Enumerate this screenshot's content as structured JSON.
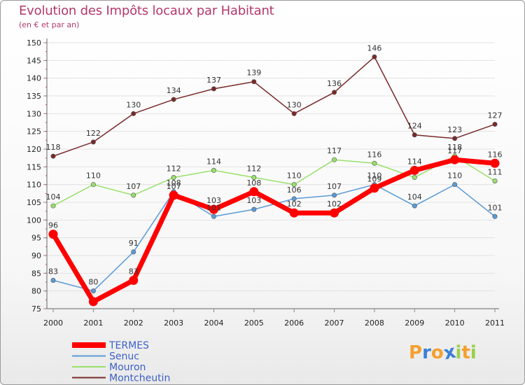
{
  "chart_data": {
    "type": "line",
    "title": "Evolution des Impôts locaux par Habitant",
    "subtitle": "(en € et par an)",
    "x": [
      "2000",
      "2001",
      "2002",
      "2003",
      "2004",
      "2005",
      "2006",
      "2007",
      "2008",
      "2009",
      "2010",
      "2011"
    ],
    "ylim": [
      75,
      150
    ],
    "yticks": [
      75,
      80,
      85,
      90,
      95,
      100,
      105,
      110,
      115,
      120,
      125,
      130,
      135,
      140,
      145,
      150
    ],
    "series": [
      {
        "name": "TERMES",
        "color": "#ff0000",
        "values": [
          96,
          77,
          83,
          107,
          103,
          108,
          102,
          102,
          109,
          114,
          117,
          116
        ]
      },
      {
        "name": "Senuc",
        "color": "#5b9bd5",
        "values": [
          83,
          80,
          91,
          108,
          101,
          103,
          106,
          107,
          110,
          104,
          110,
          101
        ]
      },
      {
        "name": "Mouron",
        "color": "#99e06b",
        "values": [
          104,
          110,
          107,
          112,
          114,
          112,
          110,
          117,
          116,
          112,
          118,
          111
        ]
      },
      {
        "name": "Montcheutin",
        "color": "#7a2a2a",
        "values": [
          118,
          122,
          130,
          134,
          137,
          139,
          130,
          136,
          146,
          124,
          123,
          127
        ]
      }
    ],
    "data_labels": {
      "TERMES": [
        "96",
        "",
        "83",
        "107",
        "103",
        "108",
        "102",
        "102",
        "109",
        "114",
        "117",
        "116"
      ],
      "Senuc": [
        "83",
        "80",
        "91",
        "108",
        "101",
        "103",
        "106",
        "107",
        "110",
        "104",
        "110",
        "101"
      ],
      "Mouron": [
        "104",
        "110",
        "107",
        "112",
        "114",
        "112",
        "110",
        "117",
        "116",
        "",
        "118",
        "111"
      ],
      "Montcheutin": [
        "118",
        "122",
        "130",
        "134",
        "137",
        "139",
        "130",
        "136",
        "146",
        "124",
        "123",
        "127"
      ]
    }
  },
  "branding": {
    "letters": [
      "P",
      "r",
      "o",
      "x",
      "i",
      "t",
      "i"
    ],
    "colors": [
      "#f4a030",
      "#3a7fd6",
      "#f4a030",
      "#3a7fd6",
      "#9bd04a",
      "#f4a030",
      "#9bd04a"
    ]
  }
}
